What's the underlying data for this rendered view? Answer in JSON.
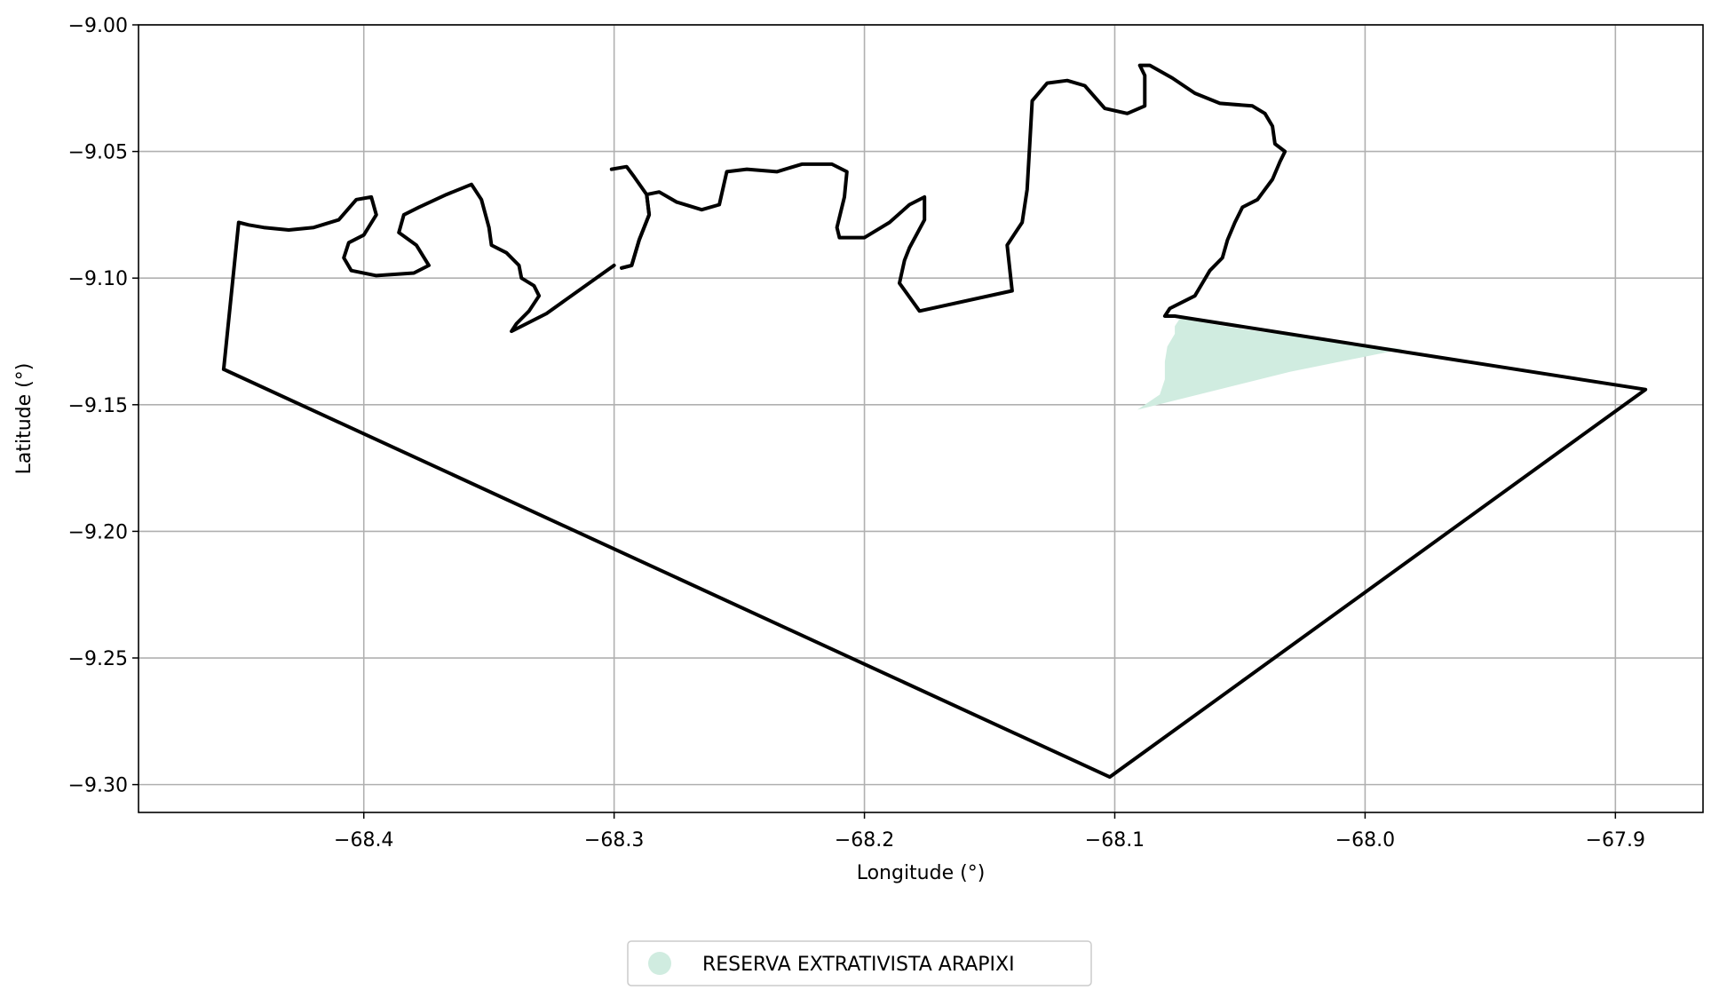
{
  "chart_data": {
    "type": "map",
    "xlabel": "Longitude (°)",
    "ylabel": "Latitude (°)",
    "xlim": [
      -68.49,
      -67.865
    ],
    "ylim": [
      -9.311,
      -9.0
    ],
    "xticks": [
      -68.4,
      -68.3,
      -68.2,
      -68.1,
      -68.0,
      -67.9
    ],
    "xtick_labels": [
      "−68.4",
      "−68.3",
      "−68.2",
      "−68.1",
      "−68.0",
      "−67.9"
    ],
    "yticks": [
      -9.0,
      -9.05,
      -9.1,
      -9.15,
      -9.2,
      -9.25,
      -9.3
    ],
    "ytick_labels": [
      "−9.00",
      "−9.05",
      "−9.10",
      "−9.15",
      "−9.20",
      "−9.25",
      "−9.30"
    ],
    "grid": true,
    "legend": {
      "placement": "bottom-center",
      "entries": [
        {
          "label": "RESERVA EXTRATIVISTA ARAPIXI",
          "color": "#d0ece0"
        }
      ]
    },
    "boundary": {
      "color": "#000000",
      "points": [
        [
          -68.456,
          -9.136
        ],
        [
          -68.45,
          -9.078
        ],
        [
          -68.446,
          -9.079
        ],
        [
          -68.44,
          -9.08
        ],
        [
          -68.43,
          -9.081
        ],
        [
          -68.42,
          -9.08
        ],
        [
          -68.41,
          -9.077
        ],
        [
          -68.403,
          -9.069
        ],
        [
          -68.397,
          -9.068
        ],
        [
          -68.395,
          -9.075
        ],
        [
          -68.4,
          -9.083
        ],
        [
          -68.406,
          -9.086
        ],
        [
          -68.408,
          -9.092
        ],
        [
          -68.405,
          -9.097
        ],
        [
          -68.395,
          -9.099
        ],
        [
          -68.38,
          -9.098
        ],
        [
          -68.374,
          -9.095
        ],
        [
          -68.379,
          -9.087
        ],
        [
          -68.386,
          -9.082
        ],
        [
          -68.384,
          -9.075
        ],
        [
          -68.378,
          -9.072
        ],
        [
          -68.367,
          -9.067
        ],
        [
          -68.357,
          -9.063
        ],
        [
          -68.353,
          -9.069
        ],
        [
          -68.35,
          -9.08
        ],
        [
          -68.349,
          -9.087
        ],
        [
          -68.343,
          -9.09
        ],
        [
          -68.338,
          -9.095
        ],
        [
          -68.337,
          -9.1
        ],
        [
          -68.332,
          -9.103
        ],
        [
          -68.33,
          -9.107
        ],
        [
          -68.334,
          -9.113
        ],
        [
          -68.339,
          -9.118
        ],
        [
          -68.341,
          -9.121
        ],
        [
          -68.327,
          -9.114
        ],
        [
          -68.3,
          -9.095
        ]
      ],
      "segments": [
        [
          [
            -68.301,
            -9.057
          ],
          [
            -68.295,
            -9.056
          ],
          [
            -68.292,
            -9.06
          ],
          [
            -68.287,
            -9.067
          ],
          [
            -68.286,
            -9.075
          ],
          [
            -68.29,
            -9.085
          ],
          [
            -68.293,
            -9.095
          ],
          [
            -68.297,
            -9.096
          ]
        ],
        [
          [
            -68.297,
            -9.096
          ],
          [
            -68.293,
            -9.095
          ],
          [
            -68.29,
            -9.085
          ],
          [
            -68.286,
            -9.075
          ],
          [
            -68.287,
            -9.067
          ],
          [
            -68.282,
            -9.066
          ],
          [
            -68.275,
            -9.07
          ],
          [
            -68.265,
            -9.073
          ],
          [
            -68.258,
            -9.071
          ],
          [
            -68.255,
            -9.058
          ],
          [
            -68.247,
            -9.057
          ],
          [
            -68.235,
            -9.058
          ],
          [
            -68.225,
            -9.055
          ],
          [
            -68.213,
            -9.055
          ],
          [
            -68.207,
            -9.058
          ],
          [
            -68.208,
            -9.068
          ],
          [
            -68.211,
            -9.08
          ],
          [
            -68.21,
            -9.084
          ],
          [
            -68.2,
            -9.084
          ],
          [
            -68.19,
            -9.078
          ],
          [
            -68.182,
            -9.071
          ],
          [
            -68.176,
            -9.068
          ],
          [
            -68.176,
            -9.077
          ],
          [
            -68.182,
            -9.088
          ],
          [
            -68.184,
            -9.093
          ],
          [
            -68.186,
            -9.102
          ],
          [
            -68.178,
            -9.113
          ],
          [
            -68.141,
            -9.105
          ],
          [
            -68.143,
            -9.087
          ],
          [
            -68.137,
            -9.078
          ],
          [
            -68.135,
            -9.065
          ],
          [
            -68.134,
            -9.048
          ],
          [
            -68.133,
            -9.03
          ],
          [
            -68.127,
            -9.023
          ],
          [
            -68.119,
            -9.022
          ],
          [
            -68.112,
            -9.024
          ],
          [
            -68.104,
            -9.033
          ],
          [
            -68.095,
            -9.035
          ],
          [
            -68.088,
            -9.032
          ],
          [
            -68.088,
            -9.02
          ],
          [
            -68.09,
            -9.016
          ],
          [
            -68.086,
            -9.016
          ],
          [
            -68.077,
            -9.021
          ],
          [
            -68.068,
            -9.027
          ],
          [
            -68.058,
            -9.031
          ],
          [
            -68.045,
            -9.032
          ],
          [
            -68.04,
            -9.035
          ],
          [
            -68.037,
            -9.04
          ],
          [
            -68.036,
            -9.047
          ],
          [
            -68.032,
            -9.05
          ],
          [
            -68.034,
            -9.054
          ],
          [
            -68.037,
            -9.061
          ],
          [
            -68.04,
            -9.065
          ],
          [
            -68.043,
            -9.069
          ],
          [
            -68.049,
            -9.072
          ],
          [
            -68.052,
            -9.078
          ],
          [
            -68.055,
            -9.085
          ],
          [
            -68.057,
            -9.092
          ],
          [
            -68.062,
            -9.097
          ],
          [
            -68.065,
            -9.102
          ],
          [
            -68.068,
            -9.107
          ],
          [
            -68.074,
            -9.11
          ],
          [
            -68.078,
            -9.112
          ],
          [
            -68.08,
            -9.115
          ],
          [
            -68.076,
            -9.115
          ],
          [
            -67.888,
            -9.144
          ],
          [
            -68.102,
            -9.297
          ],
          [
            -68.456,
            -9.136
          ]
        ]
      ]
    },
    "region": {
      "name": "RESERVA EXTRATIVISTA ARAPIXI",
      "color": "#d0ece0",
      "points": [
        [
          -68.091,
          -9.152
        ],
        [
          -68.082,
          -9.146
        ],
        [
          -68.08,
          -9.14
        ],
        [
          -68.08,
          -9.133
        ],
        [
          -68.079,
          -9.127
        ],
        [
          -68.076,
          -9.122
        ],
        [
          -68.076,
          -9.119
        ],
        [
          -68.074,
          -9.116
        ],
        [
          -68.05,
          -9.12
        ],
        [
          -68.02,
          -9.124
        ],
        [
          -67.985,
          -9.128
        ],
        [
          -68.03,
          -9.137
        ],
        [
          -68.091,
          -9.152
        ]
      ]
    }
  }
}
